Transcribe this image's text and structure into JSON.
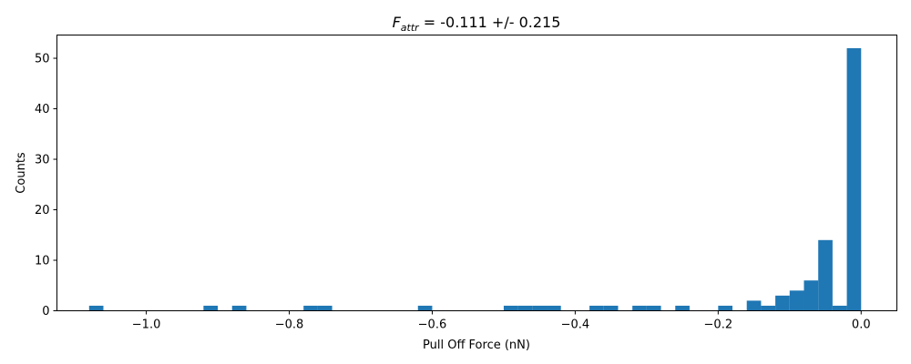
{
  "chart_data": {
    "type": "bar",
    "title": {
      "symbol": "F",
      "subscript": "attr",
      "rest": " = -0.111 +/- 0.215"
    },
    "xlabel": "Pull Off Force (nN)",
    "ylabel": "Counts",
    "xlim": [
      -1.125,
      0.05
    ],
    "ylim": [
      0,
      54.6
    ],
    "xticks": [
      -1.0,
      -0.8,
      -0.6,
      -0.4,
      -0.2,
      0.0
    ],
    "xtick_labels": [
      "−1.0",
      "−0.8",
      "−0.6",
      "−0.4",
      "−0.2",
      "0.0"
    ],
    "yticks": [
      0,
      10,
      20,
      30,
      40,
      50
    ],
    "ytick_labels": [
      "0",
      "10",
      "20",
      "30",
      "40",
      "50"
    ],
    "bin_width": 0.02,
    "bar_color": "#1f77b4",
    "bins": [
      {
        "start": -1.08,
        "count": 1
      },
      {
        "start": -0.92,
        "count": 1
      },
      {
        "start": -0.88,
        "count": 1
      },
      {
        "start": -0.78,
        "count": 1
      },
      {
        "start": -0.76,
        "count": 1
      },
      {
        "start": -0.62,
        "count": 1
      },
      {
        "start": -0.5,
        "count": 1
      },
      {
        "start": -0.48,
        "count": 1
      },
      {
        "start": -0.46,
        "count": 1
      },
      {
        "start": -0.44,
        "count": 1
      },
      {
        "start": -0.38,
        "count": 1
      },
      {
        "start": -0.36,
        "count": 1
      },
      {
        "start": -0.32,
        "count": 1
      },
      {
        "start": -0.3,
        "count": 1
      },
      {
        "start": -0.26,
        "count": 1
      },
      {
        "start": -0.2,
        "count": 1
      },
      {
        "start": -0.16,
        "count": 2
      },
      {
        "start": -0.14,
        "count": 1
      },
      {
        "start": -0.12,
        "count": 3
      },
      {
        "start": -0.1,
        "count": 4
      },
      {
        "start": -0.08,
        "count": 6
      },
      {
        "start": -0.06,
        "count": 14
      },
      {
        "start": -0.04,
        "count": 1
      },
      {
        "start": -0.02,
        "count": 52
      }
    ]
  }
}
